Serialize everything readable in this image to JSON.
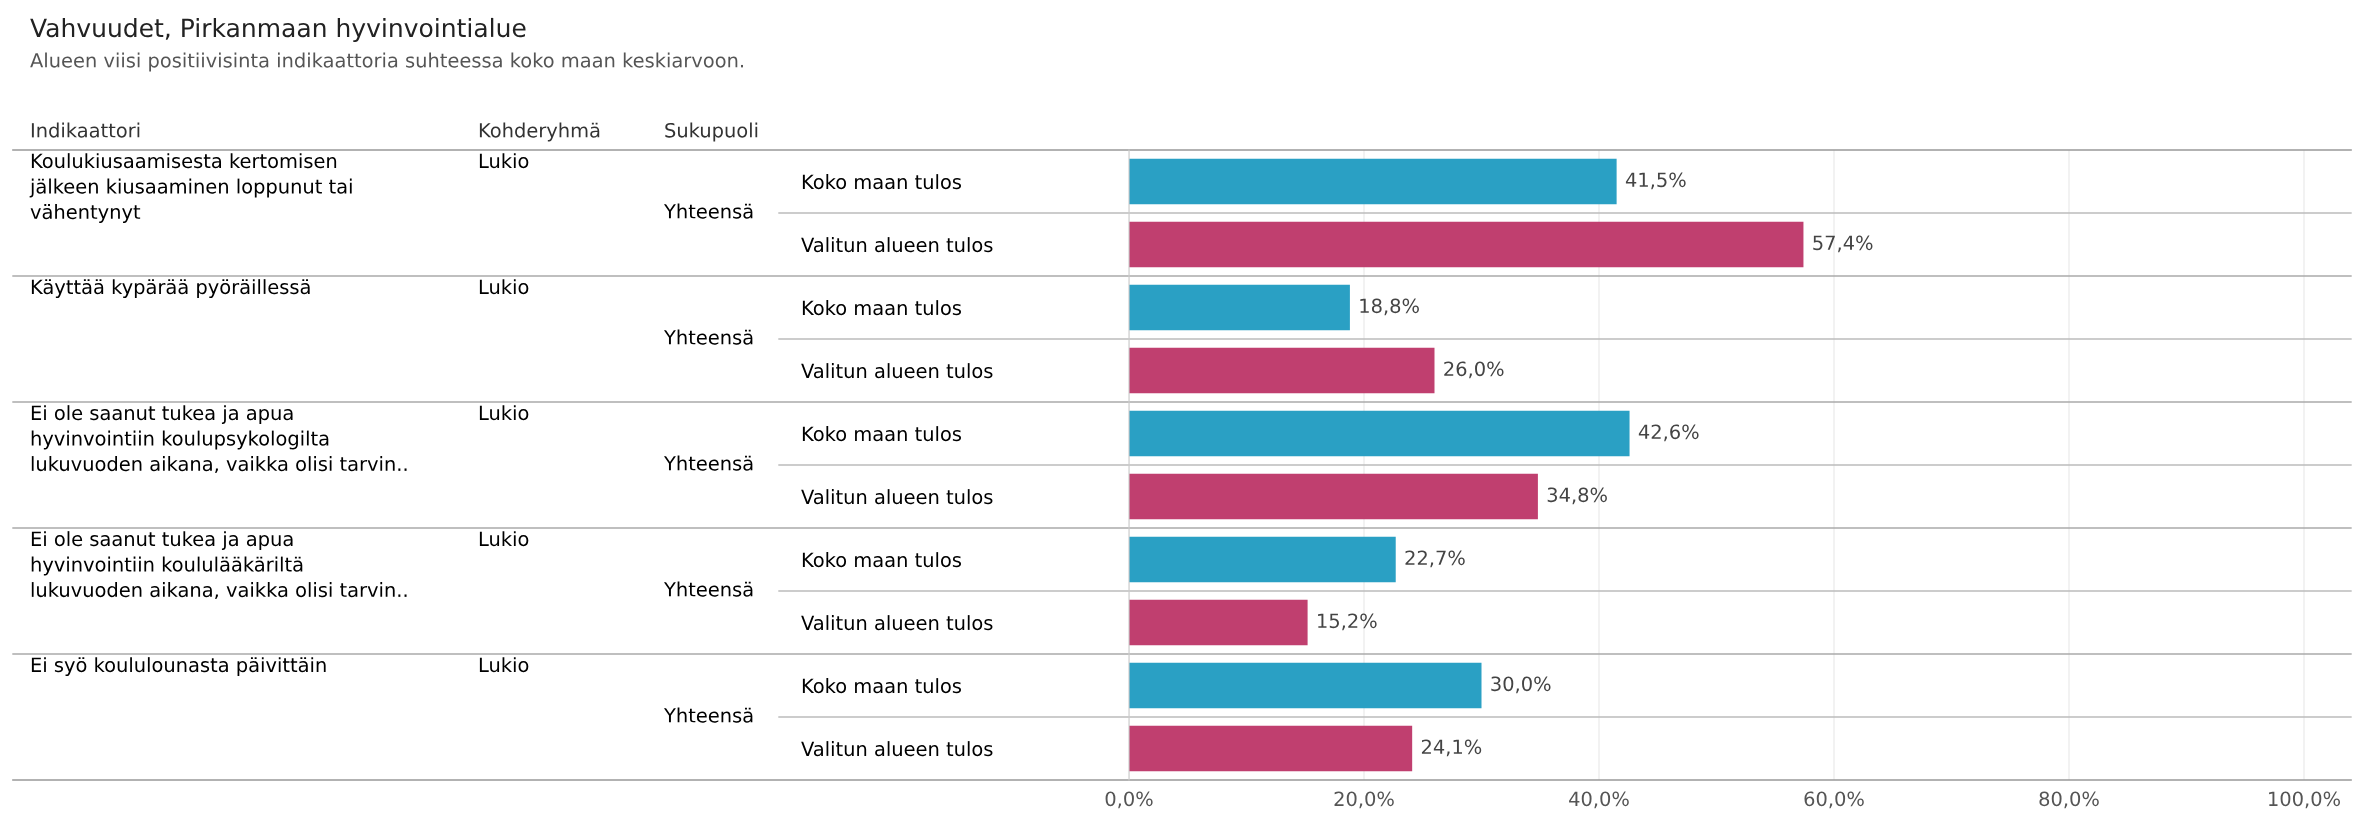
{
  "chart_data": {
    "type": "bar",
    "orientation": "horizontal",
    "title": "Vahvuudet, Pirkanmaan hyvinvointialue",
    "subtitle": "Alueen viisi positiivisinta indikaattoria suhteessa koko maan keskiarvoon.",
    "categories": [
      "Koko maan tulos",
      "Valitun alueen tulos",
      "Koko maan tulos",
      "Valitun alueen tulos",
      "Koko maan tulos",
      "Valitun alueen tulos",
      "Koko maan tulos",
      "Valitun alueen tulos",
      "Koko maan tulos",
      "Valitun alueen tulos"
    ],
    "values": [
      41.5,
      57.4,
      18.8,
      26.0,
      42.6,
      34.8,
      22.7,
      15.2,
      30.0,
      24.1
    ],
    "colors": [
      "#2aa0c4",
      "#c03f6f",
      "#2aa0c4",
      "#c03f6f",
      "#2aa0c4",
      "#c03f6f",
      "#2aa0c4",
      "#c03f6f",
      "#2aa0c4",
      "#c03f6f"
    ],
    "value_labels": [
      "41,5%",
      "57,4%",
      "18,8%",
      "26,0%",
      "42,6%",
      "34,8%",
      "22,7%",
      "15,2%",
      "30,0%",
      "24,1%"
    ],
    "xlim": [
      0,
      104
    ],
    "xticks": [
      {
        "value": 0,
        "label": "0,0%"
      },
      {
        "value": 20,
        "label": "20,0%"
      },
      {
        "value": 40,
        "label": "40,0%"
      },
      {
        "value": 60,
        "label": "60,0%"
      },
      {
        "value": 80,
        "label": "80,0%"
      },
      {
        "value": 100,
        "label": "100,0%"
      }
    ],
    "grid": "x",
    "annotations": [
      "Indikaattori",
      "Kohderyhmä",
      "Sukupuoli",
      "Koulukiusaamisesta kertomisen\njälkeen kiusaaminen loppunut tai\nvähentynyt",
      "Lukio",
      "Yhteensä",
      "Käyttää kypärää pyöräillessä",
      "Lukio",
      "Yhteensä",
      "Ei ole saanut tukea ja apua\nhyvinvointiin koulupsykologilta\nlukuvuoden aikana, vaikka olisi tarvin..",
      "Lukio",
      "Yhteensä",
      "Ei ole saanut tukea ja apua\nhyvinvointiin koululääkäriltä\nlukuvuoden aikana, vaikka olisi tarvin..",
      "Lukio",
      "Yhteensä",
      "Ei syö koululounasta päivittäin",
      "Lukio",
      "Yhteensä"
    ]
  }
}
